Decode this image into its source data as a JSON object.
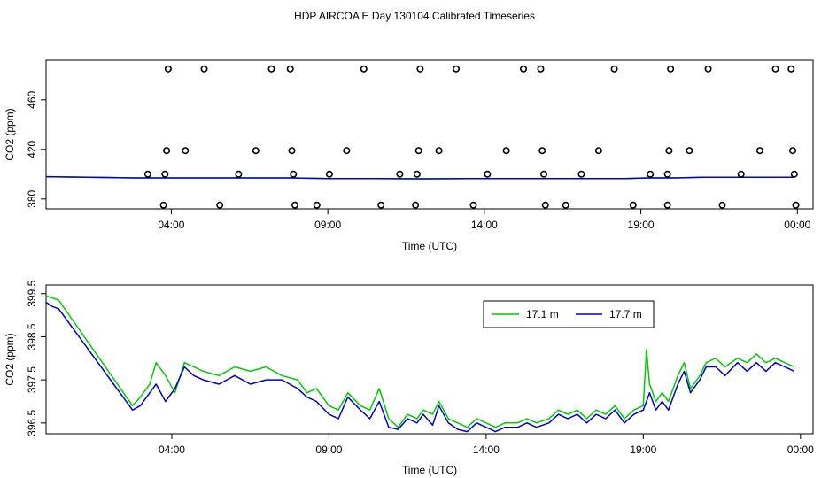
{
  "title": "HDP AIRCOA E  Day 130104  Calibrated Timeseries",
  "chart_data": [
    {
      "type": "scatter+line",
      "xlabel": "Time (UTC)",
      "ylabel": "CO2 (ppm)",
      "xlim": [
        0.0,
        24.5
      ],
      "ylim": [
        372,
        492
      ],
      "xticks": [
        4,
        9,
        14,
        19,
        24
      ],
      "xtick_labels": [
        "04:00",
        "09:00",
        "14:00",
        "19:00",
        "00:00"
      ],
      "yticks": [
        380,
        420,
        460
      ],
      "ytick_labels": [
        "380",
        "420",
        "460"
      ],
      "calibration_points": [
        {
          "x": 3.25,
          "y": 400
        },
        {
          "x": 3.8,
          "y": 400
        },
        {
          "x": 3.85,
          "y": 419
        },
        {
          "x": 3.9,
          "y": 485
        },
        {
          "x": 3.75,
          "y": 375
        },
        {
          "x": 4.45,
          "y": 419
        },
        {
          "x": 5.05,
          "y": 485
        },
        {
          "x": 5.55,
          "y": 375
        },
        {
          "x": 6.15,
          "y": 400
        },
        {
          "x": 6.7,
          "y": 419
        },
        {
          "x": 7.2,
          "y": 485
        },
        {
          "x": 7.8,
          "y": 485
        },
        {
          "x": 7.85,
          "y": 419
        },
        {
          "x": 7.9,
          "y": 400
        },
        {
          "x": 7.95,
          "y": 375
        },
        {
          "x": 8.65,
          "y": 375
        },
        {
          "x": 9.05,
          "y": 400
        },
        {
          "x": 9.6,
          "y": 419
        },
        {
          "x": 10.15,
          "y": 485
        },
        {
          "x": 10.7,
          "y": 375
        },
        {
          "x": 11.3,
          "y": 400
        },
        {
          "x": 11.85,
          "y": 400
        },
        {
          "x": 11.9,
          "y": 419
        },
        {
          "x": 11.95,
          "y": 485
        },
        {
          "x": 11.8,
          "y": 375
        },
        {
          "x": 12.55,
          "y": 419
        },
        {
          "x": 13.1,
          "y": 485
        },
        {
          "x": 13.65,
          "y": 375
        },
        {
          "x": 14.1,
          "y": 400
        },
        {
          "x": 14.7,
          "y": 419
        },
        {
          "x": 15.25,
          "y": 485
        },
        {
          "x": 15.8,
          "y": 485
        },
        {
          "x": 15.85,
          "y": 419
        },
        {
          "x": 15.9,
          "y": 400
        },
        {
          "x": 15.95,
          "y": 375
        },
        {
          "x": 16.6,
          "y": 375
        },
        {
          "x": 17.1,
          "y": 400
        },
        {
          "x": 17.65,
          "y": 419
        },
        {
          "x": 18.15,
          "y": 485
        },
        {
          "x": 18.75,
          "y": 375
        },
        {
          "x": 19.3,
          "y": 400
        },
        {
          "x": 19.85,
          "y": 400
        },
        {
          "x": 19.9,
          "y": 419
        },
        {
          "x": 19.95,
          "y": 485
        },
        {
          "x": 19.85,
          "y": 375
        },
        {
          "x": 20.55,
          "y": 419
        },
        {
          "x": 21.15,
          "y": 485
        },
        {
          "x": 21.6,
          "y": 375
        },
        {
          "x": 22.2,
          "y": 400
        },
        {
          "x": 22.8,
          "y": 419
        },
        {
          "x": 23.3,
          "y": 485
        },
        {
          "x": 23.8,
          "y": 485
        },
        {
          "x": 23.85,
          "y": 419
        },
        {
          "x": 23.9,
          "y": 400
        },
        {
          "x": 23.95,
          "y": 375
        }
      ],
      "series": [
        {
          "name": "17.1 m",
          "color": "#00cc00",
          "x": [
            0.0,
            2.8,
            3.5,
            3.9,
            5.0,
            6.5,
            7.8,
            9.0,
            10.5,
            12.0,
            13.5,
            14.5,
            16.0,
            17.2,
            18.5,
            19.2,
            20.0,
            21.0,
            22.0,
            23.9
          ],
          "values": [
            398,
            397,
            397,
            397,
            397,
            397,
            397,
            396.5,
            396.5,
            396.3,
            396.5,
            396.5,
            396.5,
            396.5,
            396.5,
            397,
            397,
            397.5,
            397.5,
            397.5
          ]
        },
        {
          "name": "17.7 m",
          "color": "#0000cc",
          "x": [
            0.0,
            2.8,
            3.5,
            3.9,
            5.0,
            6.5,
            7.8,
            9.0,
            10.5,
            12.0,
            13.5,
            14.5,
            16.0,
            17.2,
            18.5,
            19.2,
            20.0,
            21.0,
            22.0,
            23.9
          ],
          "values": [
            398,
            397,
            397,
            397,
            397,
            397,
            397,
            396.5,
            396.5,
            396.3,
            396.5,
            396.5,
            396.5,
            396.5,
            396.5,
            397,
            397,
            397.5,
            397.5,
            397.5
          ]
        }
      ]
    },
    {
      "type": "line",
      "xlabel": "Time (UTC)",
      "ylabel": "CO2 (ppm)",
      "xlim": [
        0.0,
        24.4
      ],
      "ylim": [
        396.25,
        399.7
      ],
      "xticks": [
        4,
        9,
        14,
        19,
        24
      ],
      "xtick_labels": [
        "04:00",
        "09:00",
        "14:00",
        "19:00",
        "00:00"
      ],
      "yticks": [
        396.5,
        397.5,
        398.5,
        399.5
      ],
      "ytick_labels": [
        "396.5",
        "397.5",
        "398.5",
        "399.5"
      ],
      "legend": {
        "position": "top-right",
        "entries": [
          "17.1 m",
          "17.7 m"
        ]
      },
      "series": [
        {
          "name": "17.1 m",
          "color": "#00cc00",
          "x": [
            0.0,
            0.2,
            0.4,
            2.75,
            3.0,
            3.3,
            3.5,
            3.8,
            4.1,
            4.4,
            4.7,
            5.0,
            5.5,
            6.0,
            6.5,
            7.0,
            7.5,
            8.0,
            8.3,
            8.6,
            9.0,
            9.3,
            9.6,
            10.0,
            10.3,
            10.6,
            10.9,
            11.2,
            11.5,
            11.8,
            12.0,
            12.3,
            12.5,
            12.8,
            13.1,
            13.4,
            13.7,
            14.0,
            14.3,
            14.6,
            15.0,
            15.3,
            15.6,
            16.0,
            16.3,
            16.6,
            16.9,
            17.2,
            17.5,
            17.8,
            18.1,
            18.4,
            18.7,
            19.0,
            19.1,
            19.2,
            19.4,
            19.6,
            19.8,
            20.1,
            20.3,
            20.5,
            20.8,
            21.0,
            21.3,
            21.6,
            22.0,
            22.3,
            22.6,
            22.9,
            23.2,
            23.5,
            23.8
          ],
          "values": [
            399.45,
            399.4,
            399.35,
            396.9,
            397.1,
            397.4,
            397.9,
            397.6,
            397.2,
            397.9,
            397.8,
            397.7,
            397.6,
            397.8,
            397.7,
            397.8,
            397.6,
            397.5,
            397.2,
            397.3,
            396.9,
            396.8,
            397.2,
            396.9,
            396.8,
            397.3,
            396.6,
            396.4,
            396.7,
            396.6,
            396.8,
            396.7,
            397.0,
            396.6,
            396.5,
            396.4,
            396.6,
            396.5,
            396.4,
            396.5,
            396.5,
            396.6,
            396.5,
            396.6,
            396.8,
            396.7,
            396.8,
            396.6,
            396.8,
            396.7,
            396.9,
            396.6,
            396.8,
            396.9,
            398.2,
            397.4,
            397.0,
            397.2,
            397.0,
            397.6,
            397.9,
            397.3,
            397.6,
            397.9,
            398.0,
            397.8,
            398.0,
            397.9,
            398.1,
            397.9,
            398.0,
            397.9,
            397.8
          ]
        },
        {
          "name": "17.7 m",
          "color": "#0000cc",
          "x": [
            0.0,
            0.2,
            0.4,
            2.75,
            3.0,
            3.3,
            3.5,
            3.8,
            4.1,
            4.4,
            4.7,
            5.0,
            5.5,
            6.0,
            6.5,
            7.0,
            7.5,
            8.0,
            8.3,
            8.6,
            9.0,
            9.3,
            9.6,
            10.0,
            10.3,
            10.6,
            10.9,
            11.2,
            11.5,
            11.8,
            12.0,
            12.3,
            12.5,
            12.8,
            13.1,
            13.4,
            13.7,
            14.0,
            14.3,
            14.6,
            15.0,
            15.3,
            15.6,
            16.0,
            16.3,
            16.6,
            16.9,
            17.2,
            17.5,
            17.8,
            18.1,
            18.4,
            18.7,
            19.0,
            19.1,
            19.2,
            19.4,
            19.6,
            19.8,
            20.1,
            20.3,
            20.5,
            20.8,
            21.0,
            21.3,
            21.6,
            22.0,
            22.3,
            22.6,
            22.9,
            23.2,
            23.5,
            23.8
          ],
          "values": [
            399.3,
            399.2,
            399.15,
            396.8,
            396.9,
            397.2,
            397.4,
            397.0,
            397.3,
            397.8,
            397.6,
            397.5,
            397.4,
            397.6,
            397.4,
            397.5,
            397.5,
            397.3,
            397.1,
            397.0,
            396.7,
            396.6,
            397.1,
            396.8,
            396.6,
            397.0,
            396.4,
            396.35,
            396.6,
            396.5,
            396.7,
            396.45,
            396.9,
            396.5,
            396.35,
            396.3,
            396.5,
            396.4,
            396.3,
            396.4,
            396.4,
            396.5,
            396.4,
            396.5,
            396.7,
            396.6,
            396.7,
            396.5,
            396.7,
            396.6,
            396.8,
            396.5,
            396.7,
            396.8,
            397.0,
            397.2,
            396.8,
            397.0,
            396.8,
            397.4,
            397.7,
            397.2,
            397.5,
            397.8,
            397.8,
            397.6,
            397.9,
            397.7,
            397.9,
            397.7,
            397.9,
            397.8,
            397.7
          ]
        }
      ]
    }
  ]
}
